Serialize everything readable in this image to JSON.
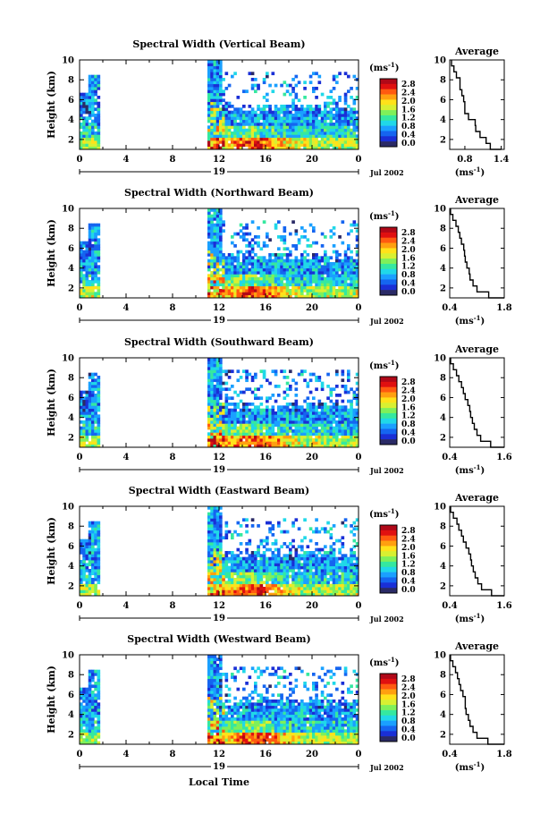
{
  "chart_data": [
    {
      "type": "heatmap",
      "title": "Spectral Width (Vertical Beam)",
      "ylabel": "Height (km)",
      "x_ticks": [
        "0",
        "4",
        "8",
        "12",
        "16",
        "20",
        "0"
      ],
      "y_ticks": [
        "2",
        "4",
        "6",
        "8",
        "10"
      ],
      "date_day": "19",
      "date_month": "Jul 2002",
      "xlim": [
        0,
        24
      ],
      "ylim": [
        1,
        10
      ],
      "colorbar": {
        "unit": "(ms",
        "unit_sup": "-1",
        "unit_close": ")",
        "labels": [
          "2.8",
          "2.4",
          "2.0",
          "1.6",
          "1.2",
          "0.8",
          "0.4",
          "0.0"
        ]
      },
      "profile": {
        "title": "Average",
        "x_ticks": [
          "0.8",
          "1.4"
        ],
        "y_ticks": [
          "2",
          "4",
          "6",
          "8",
          "10"
        ],
        "xlabel": "(ms",
        "xlabel_sup": "-1",
        "xlabel_close": ")",
        "xlim": [
          0.55,
          1.45
        ],
        "height": [
          1.0,
          1.6,
          2.2,
          2.8,
          3.4,
          4.0,
          4.6,
          5.2,
          5.8,
          6.4,
          7.0,
          7.6,
          8.2,
          8.8,
          9.4,
          10.0
        ],
        "value": [
          1.4,
          1.22,
          1.15,
          1.05,
          0.98,
          0.97,
          0.86,
          0.8,
          0.8,
          0.78,
          0.75,
          0.72,
          0.72,
          0.66,
          0.62,
          0.58
        ]
      }
    },
    {
      "type": "heatmap",
      "title": "Spectral Width (Northward Beam)",
      "ylabel": "Height (km)",
      "x_ticks": [
        "0",
        "4",
        "8",
        "12",
        "16",
        "20",
        "0"
      ],
      "y_ticks": [
        "2",
        "4",
        "6",
        "8",
        "10"
      ],
      "date_day": "19",
      "date_month": "Jul 2002",
      "xlim": [
        0,
        24
      ],
      "ylim": [
        1,
        10
      ],
      "colorbar": {
        "unit": "(ms",
        "unit_sup": "-1",
        "unit_close": ")",
        "labels": [
          "2.8",
          "2.4",
          "2.0",
          "1.6",
          "1.2",
          "0.8",
          "0.4",
          "0.0"
        ]
      },
      "profile": {
        "title": "Average",
        "x_ticks": [
          "0.4",
          "1.8"
        ],
        "y_ticks": [
          "2",
          "4",
          "6",
          "8",
          "10"
        ],
        "xlabel": "(ms",
        "xlabel_sup": "-1",
        "xlabel_close": ")",
        "xlim": [
          0.4,
          1.8
        ],
        "height": [
          1.0,
          1.6,
          2.2,
          2.8,
          3.4,
          4.0,
          4.6,
          5.2,
          5.8,
          6.4,
          7.0,
          7.6,
          8.2,
          8.8,
          9.4,
          10.0
        ],
        "value": [
          1.8,
          1.4,
          1.1,
          1.0,
          0.92,
          0.9,
          0.84,
          0.8,
          0.78,
          0.76,
          0.7,
          0.66,
          0.62,
          0.56,
          0.48,
          0.42
        ]
      }
    },
    {
      "type": "heatmap",
      "title": "Spectral Width (Southward Beam)",
      "ylabel": "Height (km)",
      "x_ticks": [
        "0",
        "4",
        "8",
        "12",
        "16",
        "20",
        "0"
      ],
      "y_ticks": [
        "2",
        "4",
        "6",
        "8",
        "10"
      ],
      "date_day": "19",
      "date_month": "Jul 2002",
      "xlim": [
        0,
        24
      ],
      "ylim": [
        1,
        10
      ],
      "colorbar": {
        "unit": "(ms",
        "unit_sup": "-1",
        "unit_close": ")",
        "labels": [
          "2.8",
          "2.4",
          "2.0",
          "1.6",
          "1.2",
          "0.8",
          "0.4",
          "0.0"
        ]
      },
      "profile": {
        "title": "Average",
        "x_ticks": [
          "0.4",
          "1.6"
        ],
        "y_ticks": [
          "2",
          "4",
          "6",
          "8",
          "10"
        ],
        "xlabel": "(ms",
        "xlabel_sup": "-1",
        "xlabel_close": ")",
        "xlim": [
          0.4,
          1.6
        ],
        "height": [
          1.0,
          1.6,
          2.2,
          2.8,
          3.4,
          4.0,
          4.6,
          5.2,
          5.8,
          6.4,
          7.0,
          7.6,
          8.2,
          8.8,
          9.4,
          10.0
        ],
        "value": [
          1.6,
          1.3,
          1.08,
          1.0,
          0.94,
          0.9,
          0.86,
          0.84,
          0.8,
          0.74,
          0.7,
          0.66,
          0.6,
          0.55,
          0.48,
          0.42
        ]
      }
    },
    {
      "type": "heatmap",
      "title": "Spectral Width (Eastward Beam)",
      "ylabel": "Height (km)",
      "x_ticks": [
        "0",
        "4",
        "8",
        "12",
        "16",
        "20",
        "0"
      ],
      "y_ticks": [
        "2",
        "4",
        "6",
        "8",
        "10"
      ],
      "date_day": "19",
      "date_month": "Jul 2002",
      "xlim": [
        0,
        24
      ],
      "ylim": [
        1,
        10
      ],
      "colorbar": {
        "unit": "(ms",
        "unit_sup": "-1",
        "unit_close": ")",
        "labels": [
          "2.8",
          "2.4",
          "2.0",
          "1.6",
          "1.2",
          "0.8",
          "0.4",
          "0.0"
        ]
      },
      "profile": {
        "title": "Average",
        "x_ticks": [
          "0.4",
          "1.6"
        ],
        "y_ticks": [
          "2",
          "4",
          "6",
          "8",
          "10"
        ],
        "xlabel": "(ms",
        "xlabel_sup": "-1",
        "xlabel_close": ")",
        "xlim": [
          0.4,
          1.6
        ],
        "height": [
          1.0,
          1.6,
          2.2,
          2.8,
          3.4,
          4.0,
          4.6,
          5.2,
          5.8,
          6.4,
          7.0,
          7.6,
          8.2,
          8.8,
          9.4,
          10.0
        ],
        "value": [
          1.6,
          1.32,
          1.1,
          1.02,
          0.96,
          0.92,
          0.88,
          0.86,
          0.82,
          0.76,
          0.7,
          0.66,
          0.6,
          0.56,
          0.48,
          0.42
        ]
      }
    },
    {
      "type": "heatmap",
      "title": "Spectral Width (Westward Beam)",
      "ylabel": "Height (km)",
      "x_ticks": [
        "0",
        "4",
        "8",
        "12",
        "16",
        "20",
        "0"
      ],
      "y_ticks": [
        "2",
        "4",
        "6",
        "8",
        "10"
      ],
      "date_day": "19",
      "date_month": "Jul 2002",
      "xlim": [
        0,
        24
      ],
      "ylim": [
        1,
        10
      ],
      "colorbar": {
        "unit": "(ms",
        "unit_sup": "-1",
        "unit_close": ")",
        "labels": [
          "2.8",
          "2.4",
          "2.0",
          "1.6",
          "1.2",
          "0.8",
          "0.4",
          "0.0"
        ]
      },
      "profile": {
        "title": "Average",
        "x_ticks": [
          "0.4",
          "1.8"
        ],
        "y_ticks": [
          "2",
          "4",
          "6",
          "8",
          "10"
        ],
        "xlabel": "(ms",
        "xlabel_sup": "-1",
        "xlabel_close": ")",
        "xlim": [
          0.4,
          1.8
        ],
        "height": [
          1.0,
          1.6,
          2.2,
          2.8,
          3.4,
          4.0,
          4.6,
          5.2,
          5.8,
          6.4,
          7.0,
          7.6,
          8.2,
          8.8,
          9.4,
          10.0
        ],
        "value": [
          1.8,
          1.38,
          1.1,
          1.0,
          0.92,
          0.88,
          0.82,
          0.8,
          0.8,
          0.74,
          0.68,
          0.64,
          0.6,
          0.55,
          0.48,
          0.42
        ]
      }
    }
  ],
  "footer": {
    "xlabel": "Local Time"
  },
  "colors": {
    "scale": [
      "#2a2a66",
      "#1a2fd6",
      "#1565f0",
      "#1aa0ff",
      "#20d8e8",
      "#35e8a0",
      "#7ff05a",
      "#d8f032",
      "#ffe21a",
      "#ffa010",
      "#ff5a10",
      "#e01010",
      "#b00818"
    ]
  }
}
